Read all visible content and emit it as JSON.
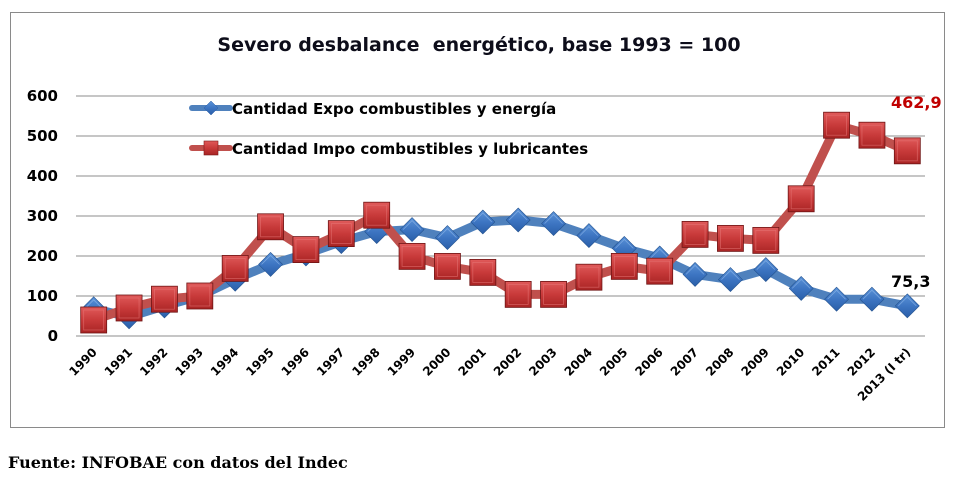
{
  "source_note": "Fuente: INFOBAE con datos del Indec",
  "chart_data": {
    "type": "line",
    "title": "Severo desbalance  energético, base 1993 = 100",
    "xlabel": "",
    "ylabel": "",
    "ylim": [
      0,
      600
    ],
    "yticks": [
      0,
      100,
      200,
      300,
      400,
      500,
      600
    ],
    "grid": true,
    "legend_position": "top-left",
    "categories": [
      "1990",
      "1991",
      "1992",
      "1993",
      "1994",
      "1995",
      "1996",
      "1997",
      "1998",
      "1999",
      "2000",
      "2001",
      "2002",
      "2003",
      "2004",
      "2005",
      "2006",
      "2007",
      "2008",
      "2009",
      "2010",
      "2011",
      "2012",
      "2013 (I tr)"
    ],
    "series": [
      {
        "name": "Cantidad Expo combustibles y energía",
        "marker": "diamond",
        "color": "#4F81BD",
        "values": [
          68,
          48,
          75,
          100,
          142,
          179,
          205,
          236,
          261,
          266,
          246,
          285,
          290,
          281,
          251,
          219,
          195,
          154,
          141,
          166,
          119,
          92,
          92,
          75.3
        ],
        "last_label": "75,3",
        "label_color": "#000000"
      },
      {
        "name": "Cantidad Impo combustibles y lubricantes",
        "marker": "square",
        "color": "#C0504D",
        "values": [
          40,
          70,
          92,
          100,
          169,
          273,
          216,
          256,
          302,
          199,
          174,
          159,
          104,
          104,
          147,
          174,
          162,
          254,
          244,
          239,
          343,
          527,
          502,
          462.9
        ],
        "last_label": "462,9",
        "label_color": "#C00000"
      }
    ]
  }
}
